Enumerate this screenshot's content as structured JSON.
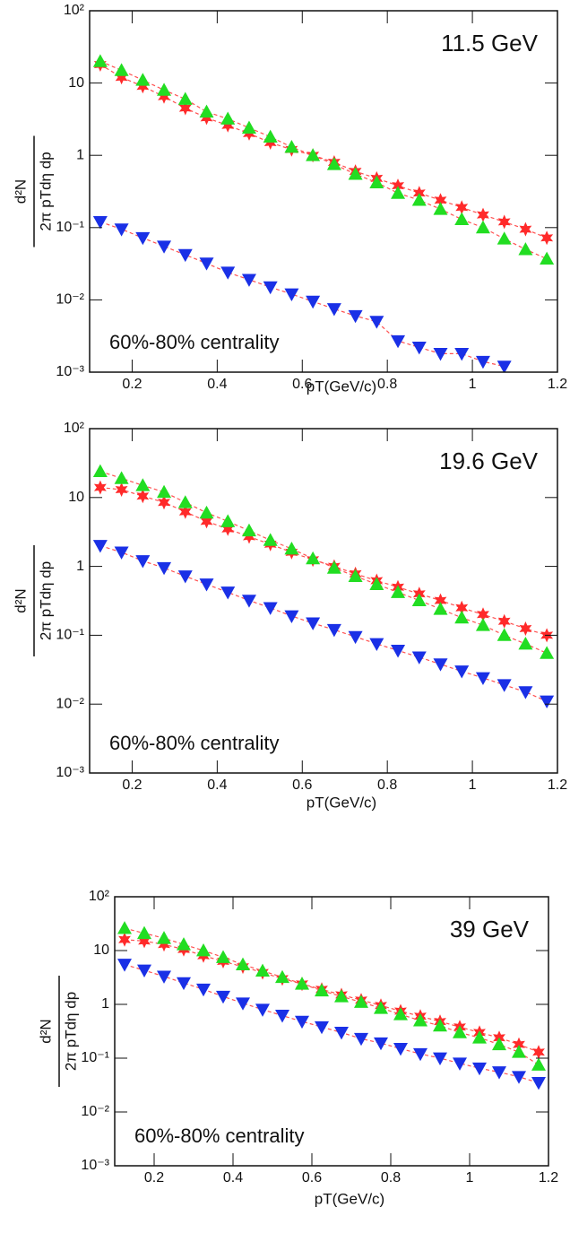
{
  "chart_data": [
    {
      "type": "scatter",
      "title": "11.5 GeV",
      "annotation": "60%-80% centrality",
      "xlabel": "pT(GeV/c)",
      "ylabel": {
        "numerator": "d²N",
        "denominator": "2π pTdη dp"
      },
      "log_y": true,
      "xlim": [
        0.1,
        1.2
      ],
      "ylim": [
        0.001,
        100
      ],
      "xticks": [
        0.2,
        0.4,
        0.6,
        0.8,
        1,
        1.2
      ],
      "yticks": [
        {
          "value": 0.001,
          "label": "10⁻³"
        },
        {
          "value": 0.01,
          "label": "10⁻²"
        },
        {
          "value": 0.1,
          "label": "10⁻¹"
        },
        1,
        10,
        {
          "value": 100,
          "label": "10²"
        }
      ],
      "x": [
        0.125,
        0.175,
        0.225,
        0.275,
        0.325,
        0.375,
        0.425,
        0.475,
        0.525,
        0.575,
        0.625,
        0.675,
        0.725,
        0.775,
        0.825,
        0.875,
        0.925,
        0.975,
        1.025,
        1.075,
        1.125,
        1.175
      ],
      "series": [
        {
          "marker": "star",
          "color": "#ff2a2a",
          "values": [
            18,
            12,
            9,
            6.5,
            4.5,
            3.3,
            2.6,
            2.0,
            1.5,
            1.2,
            1.0,
            0.8,
            0.6,
            0.48,
            0.38,
            0.3,
            0.24,
            0.19,
            0.15,
            0.12,
            0.095,
            0.072
          ]
        },
        {
          "marker": "triangle-up",
          "color": "#22dd22",
          "values": [
            20,
            15,
            11,
            8,
            6,
            4,
            3.2,
            2.4,
            1.8,
            1.3,
            1.0,
            0.75,
            0.55,
            0.42,
            0.3,
            0.24,
            0.18,
            0.13,
            0.1,
            0.07,
            0.05,
            0.037
          ]
        },
        {
          "marker": "triangle-down",
          "color": "#1a30e6",
          "values": [
            0.12,
            0.095,
            0.072,
            0.055,
            0.042,
            0.032,
            0.024,
            0.019,
            0.015,
            0.012,
            0.0095,
            0.0075,
            0.006,
            0.005,
            0.0027,
            0.0022,
            0.0018,
            0.0018,
            0.0014,
            0.0012,
            null,
            null
          ]
        }
      ]
    },
    {
      "type": "scatter",
      "title": "19.6 GeV",
      "annotation": "60%-80% centrality",
      "xlabel": "pT(GeV/c)",
      "ylabel": {
        "numerator": "d²N",
        "denominator": "2π pTdη dp"
      },
      "log_y": true,
      "xlim": [
        0.1,
        1.2
      ],
      "ylim": [
        0.001,
        100
      ],
      "xticks": [
        0.2,
        0.4,
        0.6,
        0.8,
        1,
        1.2
      ],
      "yticks": [
        {
          "value": 0.001,
          "label": "10⁻³"
        },
        {
          "value": 0.01,
          "label": "10⁻²"
        },
        {
          "value": 0.1,
          "label": "10⁻¹"
        },
        1,
        10,
        {
          "value": 100,
          "label": "10²"
        }
      ],
      "x": [
        0.125,
        0.175,
        0.225,
        0.275,
        0.325,
        0.375,
        0.425,
        0.475,
        0.525,
        0.575,
        0.625,
        0.675,
        0.725,
        0.775,
        0.825,
        0.875,
        0.925,
        0.975,
        1.025,
        1.075,
        1.125,
        1.175
      ],
      "series": [
        {
          "marker": "star",
          "color": "#ff2a2a",
          "values": [
            14,
            13,
            10.5,
            8.5,
            6.2,
            4.5,
            3.5,
            2.7,
            2.1,
            1.6,
            1.25,
            1.0,
            0.78,
            0.62,
            0.5,
            0.4,
            0.32,
            0.25,
            0.2,
            0.16,
            0.125,
            0.1
          ]
        },
        {
          "marker": "triangle-up",
          "color": "#22dd22",
          "values": [
            24,
            19,
            15,
            12,
            8.5,
            6,
            4.5,
            3.3,
            2.4,
            1.8,
            1.3,
            0.95,
            0.72,
            0.55,
            0.42,
            0.32,
            0.24,
            0.18,
            0.14,
            0.1,
            0.075,
            0.055
          ]
        },
        {
          "marker": "triangle-down",
          "color": "#1a30e6",
          "values": [
            2.0,
            1.6,
            1.2,
            0.95,
            0.72,
            0.55,
            0.42,
            0.32,
            0.25,
            0.19,
            0.15,
            0.12,
            0.095,
            0.075,
            0.06,
            0.048,
            0.038,
            0.03,
            0.024,
            0.019,
            0.015,
            0.011
          ]
        }
      ]
    },
    {
      "type": "scatter",
      "title": "39 GeV",
      "annotation": "60%-80% centrality",
      "xlabel": "pT(GeV/c)",
      "ylabel": {
        "numerator": "d²N",
        "denominator": "2π pTdη dp"
      },
      "log_y": true,
      "xlim": [
        0.1,
        1.2
      ],
      "ylim": [
        0.001,
        100
      ],
      "xticks": [
        0.2,
        0.4,
        0.6,
        0.8,
        1,
        1.2
      ],
      "yticks": [
        {
          "value": 0.001,
          "label": "10⁻³"
        },
        {
          "value": 0.01,
          "label": "10⁻²"
        },
        {
          "value": 0.1,
          "label": "10⁻¹"
        },
        1,
        10,
        {
          "value": 100,
          "label": "10²"
        }
      ],
      "x": [
        0.125,
        0.175,
        0.225,
        0.275,
        0.325,
        0.375,
        0.425,
        0.475,
        0.525,
        0.575,
        0.625,
        0.675,
        0.725,
        0.775,
        0.825,
        0.875,
        0.925,
        0.975,
        1.025,
        1.075,
        1.125,
        1.175
      ],
      "series": [
        {
          "marker": "star",
          "color": "#ff2a2a",
          "values": [
            16,
            15,
            13,
            10.5,
            8,
            6.3,
            5,
            3.9,
            3.0,
            2.4,
            1.9,
            1.5,
            1.2,
            0.95,
            0.75,
            0.6,
            0.48,
            0.38,
            0.3,
            0.24,
            0.18,
            0.13
          ]
        },
        {
          "marker": "triangle-up",
          "color": "#22dd22",
          "values": [
            26,
            21,
            17,
            13,
            10,
            7.5,
            5.5,
            4.2,
            3.2,
            2.4,
            1.8,
            1.4,
            1.1,
            0.85,
            0.65,
            0.5,
            0.4,
            0.3,
            0.24,
            0.18,
            0.13,
            0.075
          ]
        },
        {
          "marker": "triangle-down",
          "color": "#1a30e6",
          "values": [
            5.5,
            4.3,
            3.3,
            2.5,
            1.9,
            1.4,
            1.05,
            0.8,
            0.62,
            0.48,
            0.38,
            0.3,
            0.23,
            0.19,
            0.15,
            0.12,
            0.1,
            0.08,
            0.065,
            0.055,
            0.045,
            0.035
          ]
        }
      ]
    }
  ]
}
